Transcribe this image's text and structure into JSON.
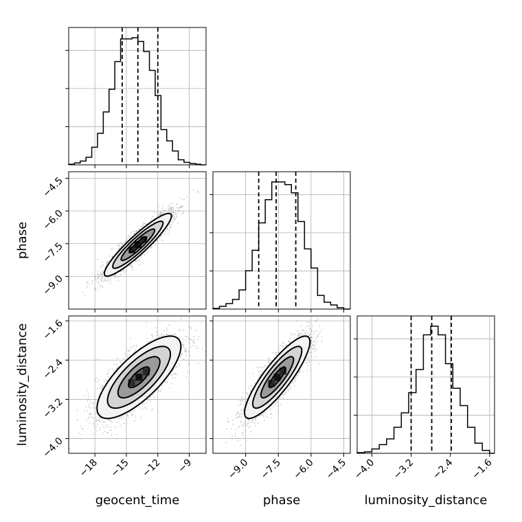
{
  "chart_data": {
    "type": "corner",
    "parameters": [
      {
        "name": "geocent_time",
        "label": "geocent_time",
        "range": [
          -20.5,
          -7.4
        ],
        "ticks": [
          -18,
          -15,
          -12,
          -9
        ],
        "tick_labels": [
          "−18",
          "−15",
          "−12",
          "−9"
        ],
        "quantiles": [
          -15.4,
          -13.9,
          -12.0
        ],
        "hist_bins": [
          -20.5,
          -19.95,
          -19.4,
          -18.85,
          -18.3,
          -17.75,
          -17.2,
          -16.65,
          -16.1,
          -15.55,
          -15.0,
          -14.45,
          -13.9,
          -13.35,
          -12.8,
          -12.25,
          -11.7,
          -11.15,
          -10.6,
          -10.05,
          -9.5,
          -8.95,
          -8.4,
          -7.9,
          -7.4
        ],
        "hist_counts": [
          0.5,
          1.5,
          3,
          6,
          14,
          25,
          42,
          60,
          82,
          100,
          100,
          101,
          98,
          90,
          75,
          55,
          28,
          19,
          11,
          4,
          2,
          1,
          0.5,
          0
        ]
      },
      {
        "name": "phase",
        "label": "phase",
        "range": [
          -10.5,
          -4.2
        ],
        "ticks": [
          -9.0,
          -7.5,
          -6.0,
          -4.5
        ],
        "tick_labels": [
          "−9.0",
          "−7.5",
          "−6.0",
          "−4.5"
        ],
        "quantiles": [
          -8.4,
          -7.6,
          -6.7
        ],
        "hist_bins": [
          -10.5,
          -10.2,
          -9.9,
          -9.6,
          -9.3,
          -9.0,
          -8.7,
          -8.4,
          -8.1,
          -7.8,
          -7.5,
          -7.2,
          -6.9,
          -6.6,
          -6.3,
          -6.0,
          -5.7,
          -5.4,
          -5.1,
          -4.8,
          -4.5,
          -4.2
        ],
        "hist_counts": [
          0.5,
          2,
          4,
          7,
          14,
          28,
          43,
          63,
          80,
          93,
          93,
          91,
          85,
          64,
          44,
          30,
          10,
          5,
          3,
          1,
          0
        ]
      },
      {
        "name": "luminosity_distance",
        "label": "luminosity_distance",
        "range": [
          -4.3,
          -1.5
        ],
        "ticks": [
          -4.0,
          -3.2,
          -2.4,
          -1.6
        ],
        "tick_labels": [
          "−4.0",
          "−3.2",
          "−2.4",
          "−1.6"
        ],
        "quantiles": [
          -3.2,
          -2.78,
          -2.38
        ],
        "hist_bins": [
          -4.3,
          -4.15,
          -4.0,
          -3.85,
          -3.7,
          -3.55,
          -3.4,
          -3.25,
          -3.1,
          -2.95,
          -2.8,
          -2.65,
          -2.5,
          -2.35,
          -2.2,
          -2.05,
          -1.9,
          -1.75,
          -1.6,
          -1.5
        ],
        "hist_counts": [
          0.5,
          1,
          3,
          6,
          10,
          18,
          28,
          42,
          58,
          82,
          88,
          82,
          62,
          45,
          33,
          18,
          7,
          2,
          0
        ]
      }
    ],
    "pairs": [
      {
        "x": "geocent_time",
        "y": "phase",
        "mean": [
          -13.9,
          -7.55
        ],
        "std": [
          1.6,
          0.72
        ],
        "corr": 0.92,
        "n_points": 2400,
        "contour_levels_sigma": [
          0.5,
          1.0,
          1.5,
          2.0
        ]
      },
      {
        "x": "geocent_time",
        "y": "luminosity_distance",
        "mean": [
          -13.8,
          -2.75
        ],
        "std": [
          2.0,
          0.42
        ],
        "corr": 0.75,
        "n_points": 2400,
        "contour_levels_sigma": [
          0.5,
          1.0,
          1.5,
          2.0
        ]
      },
      {
        "x": "phase",
        "y": "luminosity_distance",
        "mean": [
          -7.55,
          -2.75
        ],
        "std": [
          0.75,
          0.42
        ],
        "corr": 0.86,
        "n_points": 2400,
        "contour_levels_sigma": [
          0.5,
          1.0,
          1.5,
          2.0
        ]
      }
    ],
    "grid": true
  }
}
